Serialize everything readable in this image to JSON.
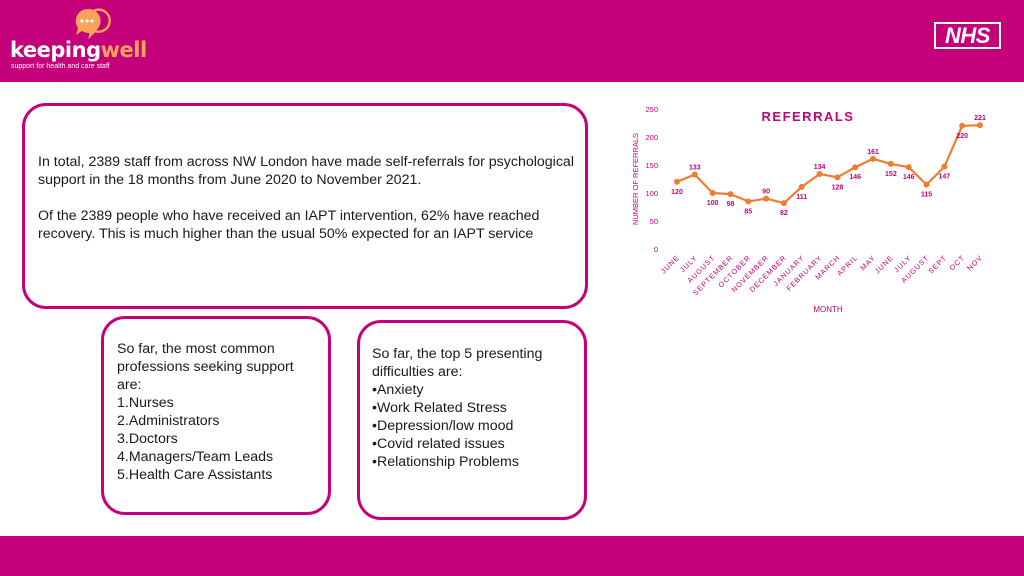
{
  "brand": {
    "name_part1": "keeping",
    "name_part2": "well",
    "tagline": "support for health and care staff",
    "nhs_logo": "NHS",
    "colors": {
      "primary": "#c4007a",
      "accent": "#f7a35c",
      "line": "#ed7d31"
    }
  },
  "summary": {
    "paragraph1": "In total, 2389 staff from across NW London have made self-referrals for psychological support in the 18 months from June 2020 to November 2021.",
    "paragraph2": "Of the 2389 people who have received an IAPT intervention, 62% have reached recovery. This is much higher than the usual 50% expected for an IAPT service"
  },
  "professions": {
    "lines": [
      "So far, the most common professions seeking support are:",
      "1.Nurses",
      "2.Administrators",
      "3.Doctors",
      "4.Managers/Team Leads",
      "5.Health Care Assistants"
    ]
  },
  "difficulties": {
    "lines": [
      "So far, the top 5 presenting difficulties are:",
      "•Anxiety",
      "•Work Related Stress",
      "•Depression/low mood",
      "•Covid related issues",
      "•Relationship Problems"
    ]
  },
  "chart_data": {
    "type": "line",
    "title": "REFERRALS",
    "xlabel": "MONTH",
    "ylabel": "NUMBER OF REFERRALS",
    "categories": [
      "JUNE",
      "JULY",
      "AUGUST",
      "SEPTEMBER",
      "OCTOBER",
      "NOVEMBER",
      "DECEMBER",
      "JANUARY",
      "FEBRUARY",
      "MARCH",
      "APRIL",
      "MAY",
      "JUNE",
      "JULY",
      "AUGUST",
      "SEPT",
      "OCT",
      "NOV"
    ],
    "values": [
      120,
      133,
      100,
      98,
      85,
      90,
      82,
      111,
      134,
      128,
      146,
      161,
      152,
      146,
      115,
      147,
      220,
      221
    ],
    "ylim": [
      0,
      250
    ],
    "yticks": [
      0,
      50,
      100,
      150,
      200,
      250
    ],
    "grid": false,
    "legend": "none"
  }
}
